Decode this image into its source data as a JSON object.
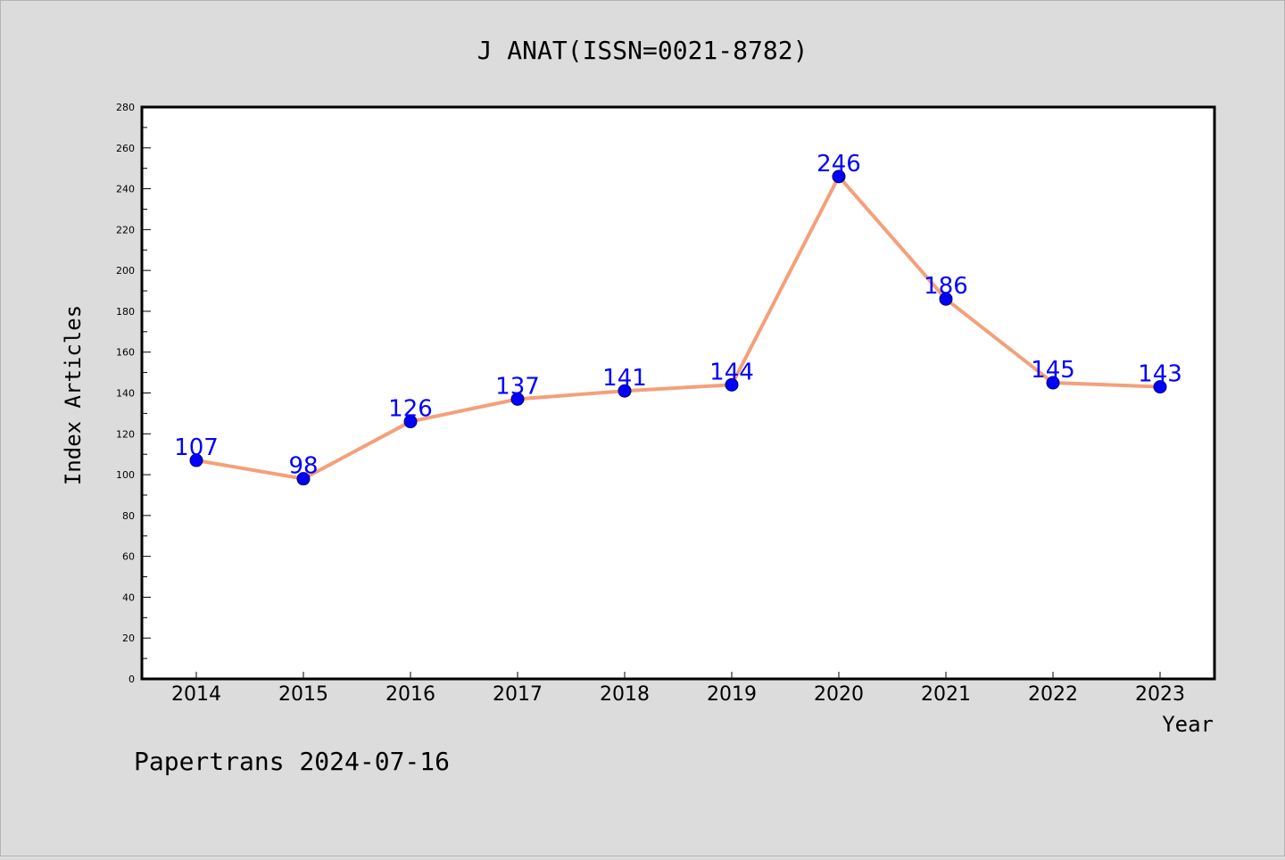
{
  "chart_data": {
    "type": "line",
    "title": "J ANAT(ISSN=0021-8782)",
    "xlabel": "Year",
    "ylabel": "Index Articles",
    "categories": [
      "2014",
      "2015",
      "2016",
      "2017",
      "2018",
      "2019",
      "2020",
      "2021",
      "2022",
      "2023"
    ],
    "series": [
      {
        "values": [
          107,
          98,
          126,
          137,
          141,
          144,
          246,
          186,
          145,
          143
        ]
      }
    ],
    "ylim": [
      0,
      280
    ],
    "yticks": [
      0,
      20,
      40,
      60,
      80,
      100,
      120,
      140,
      160,
      180,
      200,
      220,
      240,
      260,
      280
    ],
    "grid": false,
    "line_color": "#f4a07a",
    "marker_color": "#0000ff",
    "label_color": "#0000ff",
    "background_color": "#dcdcdc",
    "plot_background": "#ffffff"
  },
  "footer": {
    "text": "Papertrans 2024-07-16"
  }
}
